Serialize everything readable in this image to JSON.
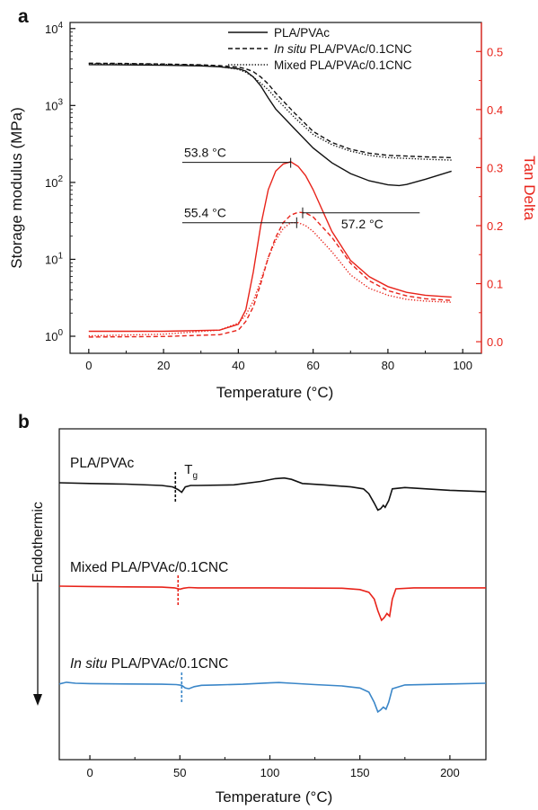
{
  "chart_data": [
    {
      "panel": "a",
      "type": "line",
      "xlabel": "Temperature (°C)",
      "ylabel": "Storage modulus (MPa)",
      "ylabel_right": "Tan Delta",
      "xlim": [
        -5,
        105
      ],
      "x_ticks": [
        "0",
        "20",
        "40",
        "60",
        "80",
        "100"
      ],
      "y_scale": "log",
      "ylim": [
        0.6,
        12000
      ],
      "y_ticks": [
        "10^0",
        "10^1",
        "10^2",
        "10^3",
        "10^4"
      ],
      "y2lim": [
        -0.02,
        0.55
      ],
      "y2_ticks": [
        "0.0",
        "0.1",
        "0.2",
        "0.3",
        "0.4",
        "0.5"
      ],
      "legend": {
        "position": "top-right",
        "entries": [
          {
            "label": "PLA/PVAc",
            "style": "solid"
          },
          {
            "label_italic": "In situ",
            "label": " PLA/PVAc/0.1CNC",
            "style": "dashed"
          },
          {
            "label": "Mixed PLA/PVAc/0.1CNC",
            "style": "dotted"
          }
        ]
      },
      "annotations": [
        {
          "text": "53.8 °C",
          "x": 54.0,
          "tan": 0.309
        },
        {
          "text": "55.4 °C",
          "x": 55.6,
          "tan": 0.205
        },
        {
          "text": "57.2 °C",
          "x": 57.2,
          "tan": 0.222
        }
      ],
      "colors": {
        "modulus": "#111111",
        "tan": "#e8231a"
      },
      "modulus_series": [
        {
          "name": "PLA/PVAc",
          "style": "solid",
          "x": [
            0,
            10,
            20,
            30,
            35,
            40,
            42,
            44,
            46,
            48,
            50,
            55,
            60,
            65,
            70,
            75,
            80,
            83,
            85,
            90,
            97
          ],
          "y": [
            3400,
            3370,
            3330,
            3270,
            3180,
            3000,
            2800,
            2350,
            1800,
            1250,
            900,
            500,
            280,
            180,
            130,
            105,
            93,
            91,
            94,
            110,
            140
          ]
        },
        {
          "name": "In situ PLA/PVAc/0.1CNC",
          "style": "dashed",
          "x": [
            0,
            10,
            20,
            30,
            35,
            40,
            42,
            44,
            46,
            48,
            50,
            55,
            60,
            65,
            70,
            75,
            80,
            85,
            90,
            97
          ],
          "y": [
            3550,
            3520,
            3460,
            3380,
            3300,
            3150,
            3000,
            2750,
            2350,
            1900,
            1450,
            800,
            460,
            330,
            270,
            240,
            225,
            220,
            215,
            210
          ]
        },
        {
          "name": "Mixed PLA/PVAc/0.1CNC",
          "style": "dotted",
          "x": [
            0,
            10,
            20,
            30,
            35,
            40,
            42,
            44,
            46,
            48,
            50,
            55,
            60,
            65,
            70,
            75,
            80,
            85,
            90,
            97
          ],
          "y": [
            3500,
            3470,
            3420,
            3330,
            3200,
            2950,
            2700,
            2350,
            1950,
            1600,
            1250,
            700,
            420,
            310,
            255,
            225,
            210,
            205,
            200,
            195
          ]
        }
      ],
      "tan_series": [
        {
          "name": "PLA/PVAc",
          "style": "solid",
          "x": [
            0,
            20,
            35,
            40,
            42,
            44,
            46,
            48,
            50,
            52,
            54,
            56,
            58,
            60,
            65,
            70,
            75,
            80,
            85,
            90,
            97
          ],
          "y": [
            0.018,
            0.018,
            0.02,
            0.03,
            0.055,
            0.12,
            0.2,
            0.262,
            0.294,
            0.306,
            0.31,
            0.302,
            0.286,
            0.262,
            0.19,
            0.14,
            0.112,
            0.095,
            0.085,
            0.08,
            0.077
          ]
        },
        {
          "name": "In situ PLA/PVAc/0.1CNC",
          "style": "dashed",
          "x": [
            0,
            20,
            35,
            40,
            42,
            44,
            46,
            48,
            50,
            52,
            54,
            56,
            58,
            60,
            65,
            70,
            75,
            80,
            85,
            90,
            97
          ],
          "y": [
            0.008,
            0.009,
            0.012,
            0.02,
            0.035,
            0.06,
            0.1,
            0.145,
            0.18,
            0.205,
            0.218,
            0.223,
            0.222,
            0.215,
            0.18,
            0.135,
            0.105,
            0.088,
            0.079,
            0.074,
            0.071
          ]
        },
        {
          "name": "Mixed PLA/PVAc/0.1CNC",
          "style": "dotted",
          "x": [
            0,
            20,
            35,
            40,
            42,
            44,
            46,
            48,
            50,
            52,
            54,
            56,
            58,
            60,
            65,
            70,
            75,
            80,
            85,
            90,
            97
          ],
          "y": [
            0.01,
            0.013,
            0.02,
            0.032,
            0.046,
            0.07,
            0.105,
            0.145,
            0.175,
            0.195,
            0.205,
            0.205,
            0.2,
            0.19,
            0.155,
            0.115,
            0.092,
            0.08,
            0.073,
            0.07,
            0.068
          ]
        }
      ]
    },
    {
      "panel": "b",
      "type": "line",
      "xlabel": "Temperature (°C)",
      "ylabel": "Endothermic",
      "xlim": [
        -17,
        220
      ],
      "x_ticks": [
        "0",
        "50",
        "100",
        "150",
        "200"
      ],
      "tg_label": "T",
      "tg_subscript": "g",
      "series": [
        {
          "name": "PLA/PVAc",
          "color": "#111111",
          "tg": 47.5,
          "x": [
            -17,
            0,
            20,
            40,
            46,
            49,
            51,
            53,
            56,
            60,
            80,
            95,
            103,
            108,
            112,
            118,
            130,
            145,
            152,
            155,
            158,
            160,
            161.5,
            163,
            164,
            166,
            168,
            175,
            200,
            220
          ],
          "y": [
            0,
            2,
            4,
            8,
            12,
            20,
            28,
            12,
            8,
            8,
            6,
            -4,
            -12,
            -14,
            -10,
            2,
            6,
            12,
            18,
            32,
            60,
            80,
            76,
            66,
            72,
            52,
            18,
            14,
            22,
            26
          ]
        },
        {
          "name": "Mixed PLA/PVAc/0.1CNC",
          "color": "#e8231a",
          "tg": 49,
          "x": [
            -17,
            0,
            20,
            40,
            47,
            50,
            52,
            55,
            60,
            100,
            140,
            150,
            155,
            158,
            160,
            162,
            163.5,
            165,
            166.5,
            168,
            170,
            180,
            220
          ],
          "y": [
            0,
            1,
            2,
            3,
            5,
            9,
            6,
            4,
            5,
            5,
            6,
            10,
            18,
            38,
            72,
            100,
            92,
            80,
            88,
            38,
            8,
            5,
            5
          ]
        },
        {
          "name": "In situ PLA/PVAc/0.1CNC",
          "color": "#3a86c8",
          "tg": 51,
          "x": [
            -17,
            -13,
            -8,
            0,
            20,
            40,
            48,
            51,
            53,
            55,
            58,
            62,
            70,
            85,
            100,
            105,
            112,
            125,
            140,
            150,
            155,
            158,
            160,
            161.5,
            163,
            164.5,
            166,
            168,
            175,
            200,
            220
          ],
          "y": [
            2,
            -3,
            0,
            1,
            2,
            3,
            4,
            6,
            14,
            16,
            10,
            6,
            5,
            3,
            -1,
            -2,
            0,
            4,
            8,
            14,
            26,
            56,
            84,
            78,
            70,
            76,
            56,
            16,
            5,
            2,
            0
          ]
        }
      ]
    }
  ],
  "panel_labels": [
    "a",
    "b"
  ]
}
